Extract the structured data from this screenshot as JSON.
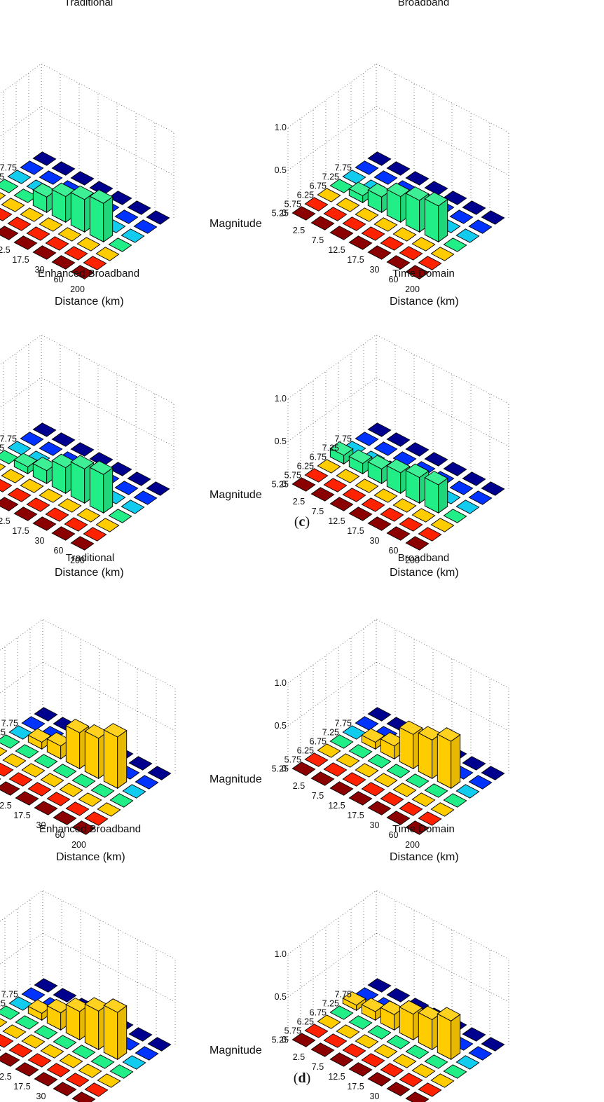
{
  "panel_labels": [
    "c",
    "d"
  ],
  "colors": {
    "m525": "#00008f",
    "m575": "#0033ff",
    "m625": "#11ccee",
    "m675": "#22ee88",
    "m725": "#ffcc00",
    "m775": "#ff2200",
    "m825": "#8b0000",
    "grid": "#666666"
  },
  "chart_data": [
    {
      "panel": "c",
      "type": "bar3d",
      "title": "Traditional",
      "xlabel": "Distance (km)",
      "ylabel": "Magnitude",
      "zlim": [
        0,
        1.0
      ],
      "z_ticks": [
        "0",
        "0.5",
        "1.0"
      ],
      "magnitude_ticks": [
        "5.25",
        "5.75",
        "6.25",
        "6.75",
        "7.25",
        "7.75"
      ],
      "distance_ticks": [
        "2.5",
        "7.5",
        "12.5",
        "17.5",
        "30",
        "60",
        "200"
      ],
      "bars": [
        {
          "magnitude": "6.75",
          "distance": "12.5",
          "value": 0.18
        },
        {
          "magnitude": "6.75",
          "distance": "17.5",
          "value": 0.3
        },
        {
          "magnitude": "6.75",
          "distance": "30",
          "value": 0.38
        },
        {
          "magnitude": "6.75",
          "distance": "60",
          "value": 0.45
        }
      ]
    },
    {
      "panel": "c",
      "type": "bar3d",
      "title": "Broadband",
      "xlabel": "Distance (km)",
      "ylabel": "Magnitude",
      "zlim": [
        0,
        1.0
      ],
      "z_ticks": [
        "0",
        "0.5",
        "1.0"
      ],
      "magnitude_ticks": [
        "5.25",
        "5.75",
        "6.25",
        "6.75",
        "7.25",
        "7.75"
      ],
      "distance_ticks": [
        "2.5",
        "7.5",
        "12.5",
        "17.5",
        "30",
        "60",
        "200"
      ],
      "bars": [
        {
          "magnitude": "6.75",
          "distance": "7.5",
          "value": 0.08
        },
        {
          "magnitude": "6.75",
          "distance": "12.5",
          "value": 0.18
        },
        {
          "magnitude": "6.75",
          "distance": "17.5",
          "value": 0.3
        },
        {
          "magnitude": "6.75",
          "distance": "30",
          "value": 0.37
        },
        {
          "magnitude": "6.75",
          "distance": "60",
          "value": 0.42
        }
      ]
    },
    {
      "panel": "c",
      "type": "bar3d",
      "title": "Enhanced Broadband",
      "xlabel": "Distance (km)",
      "ylabel": "Magnitude",
      "zlim": [
        0,
        1.0
      ],
      "z_ticks": [
        "0",
        "0.5",
        "1.0"
      ],
      "magnitude_ticks": [
        "5.25",
        "5.75",
        "6.25",
        "6.75",
        "7.25",
        "7.75"
      ],
      "distance_ticks": [
        "2.5",
        "7.5",
        "12.5",
        "17.5",
        "30",
        "60",
        "200"
      ],
      "bars": [
        {
          "magnitude": "6.75",
          "distance": "7.5",
          "value": 0.08
        },
        {
          "magnitude": "6.75",
          "distance": "12.5",
          "value": 0.15
        },
        {
          "magnitude": "6.75",
          "distance": "17.5",
          "value": 0.3
        },
        {
          "magnitude": "6.75",
          "distance": "30",
          "value": 0.4
        },
        {
          "magnitude": "6.75",
          "distance": "60",
          "value": 0.45
        }
      ]
    },
    {
      "panel": "c",
      "type": "bar3d",
      "title": "Time Domain",
      "xlabel": "Distance (km)",
      "ylabel": "Magnitude",
      "zlim": [
        0,
        1.0
      ],
      "z_ticks": [
        "0",
        "0.5",
        "1.0"
      ],
      "magnitude_ticks": [
        "5.25",
        "5.75",
        "6.25",
        "6.75",
        "7.25",
        "7.75"
      ],
      "distance_ticks": [
        "2.5",
        "7.5",
        "12.5",
        "17.5",
        "30",
        "60",
        "200"
      ],
      "bars": [
        {
          "magnitude": "6.75",
          "distance": "2.5",
          "value": 0.1
        },
        {
          "magnitude": "6.75",
          "distance": "7.5",
          "value": 0.12
        },
        {
          "magnitude": "6.75",
          "distance": "12.5",
          "value": 0.17
        },
        {
          "magnitude": "6.75",
          "distance": "17.5",
          "value": 0.24
        },
        {
          "magnitude": "6.75",
          "distance": "30",
          "value": 0.3
        },
        {
          "magnitude": "6.75",
          "distance": "60",
          "value": 0.33
        }
      ]
    },
    {
      "panel": "d",
      "type": "bar3d",
      "title": "Traditional",
      "xlabel": "Distance (km)",
      "ylabel": "Magnitude",
      "zlim": [
        0,
        1.0
      ],
      "z_ticks": [
        "0",
        "0.5",
        "1.0"
      ],
      "magnitude_ticks": [
        "5.25",
        "5.75",
        "6.25",
        "6.75",
        "7.25",
        "7.75"
      ],
      "distance_ticks": [
        "2.5",
        "7.5",
        "12.5",
        "17.5",
        "30",
        "60",
        "200"
      ],
      "bars": [
        {
          "magnitude": "7.25",
          "distance": "7.5",
          "value": 0.08
        },
        {
          "magnitude": "7.25",
          "distance": "12.5",
          "value": 0.15
        },
        {
          "magnitude": "7.25",
          "distance": "17.5",
          "value": 0.42
        },
        {
          "magnitude": "7.25",
          "distance": "30",
          "value": 0.47
        },
        {
          "magnitude": "7.25",
          "distance": "60",
          "value": 0.6
        }
      ]
    },
    {
      "panel": "d",
      "type": "bar3d",
      "title": "Broadband",
      "xlabel": "Distance (km)",
      "ylabel": "Magnitude",
      "zlim": [
        0,
        1.0
      ],
      "z_ticks": [
        "0",
        "0.5",
        "1.0"
      ],
      "magnitude_ticks": [
        "5.25",
        "5.75",
        "6.25",
        "6.75",
        "7.25",
        "7.75"
      ],
      "distance_ticks": [
        "2.5",
        "7.5",
        "12.5",
        "17.5",
        "30",
        "60",
        "200"
      ],
      "bars": [
        {
          "magnitude": "7.25",
          "distance": "7.5",
          "value": 0.08
        },
        {
          "magnitude": "7.25",
          "distance": "12.5",
          "value": 0.15
        },
        {
          "magnitude": "7.25",
          "distance": "17.5",
          "value": 0.4
        },
        {
          "magnitude": "7.25",
          "distance": "30",
          "value": 0.45
        },
        {
          "magnitude": "7.25",
          "distance": "60",
          "value": 0.55
        }
      ]
    },
    {
      "panel": "d",
      "type": "bar3d",
      "title": "Enhanced Broadband",
      "xlabel": "Distance (km)",
      "ylabel": "Magnitude",
      "zlim": [
        0,
        1.0
      ],
      "z_ticks": [
        "0",
        "0.5",
        "1.0"
      ],
      "magnitude_ticks": [
        "5.25",
        "5.75",
        "6.25",
        "6.75",
        "7.25",
        "7.75"
      ],
      "distance_ticks": [
        "2.5",
        "7.5",
        "12.5",
        "17.5",
        "30",
        "60",
        "200"
      ],
      "bars": [
        {
          "magnitude": "7.25",
          "distance": "7.5",
          "value": 0.08
        },
        {
          "magnitude": "7.25",
          "distance": "12.5",
          "value": 0.2
        },
        {
          "magnitude": "7.25",
          "distance": "17.5",
          "value": 0.33
        },
        {
          "magnitude": "7.25",
          "distance": "30",
          "value": 0.45
        },
        {
          "magnitude": "7.25",
          "distance": "60",
          "value": 0.55
        }
      ]
    },
    {
      "panel": "d",
      "type": "bar3d",
      "title": "Time Domain",
      "xlabel": "Distance (km)",
      "ylabel": "Magnitude",
      "zlim": [
        0,
        1.0
      ],
      "z_ticks": [
        "0",
        "0.5",
        "1.0"
      ],
      "magnitude_ticks": [
        "5.25",
        "5.75",
        "6.25",
        "6.75",
        "7.25",
        "7.75"
      ],
      "distance_ticks": [
        "2.5",
        "7.5",
        "12.5",
        "17.5",
        "30",
        "60",
        "200"
      ],
      "bars": [
        {
          "magnitude": "7.25",
          "distance": "2.5",
          "value": 0.06
        },
        {
          "magnitude": "7.25",
          "distance": "7.5",
          "value": 0.1
        },
        {
          "magnitude": "7.25",
          "distance": "12.5",
          "value": 0.18
        },
        {
          "magnitude": "7.25",
          "distance": "17.5",
          "value": 0.3
        },
        {
          "magnitude": "7.25",
          "distance": "30",
          "value": 0.35
        },
        {
          "magnitude": "7.25",
          "distance": "60",
          "value": 0.45
        }
      ]
    }
  ]
}
